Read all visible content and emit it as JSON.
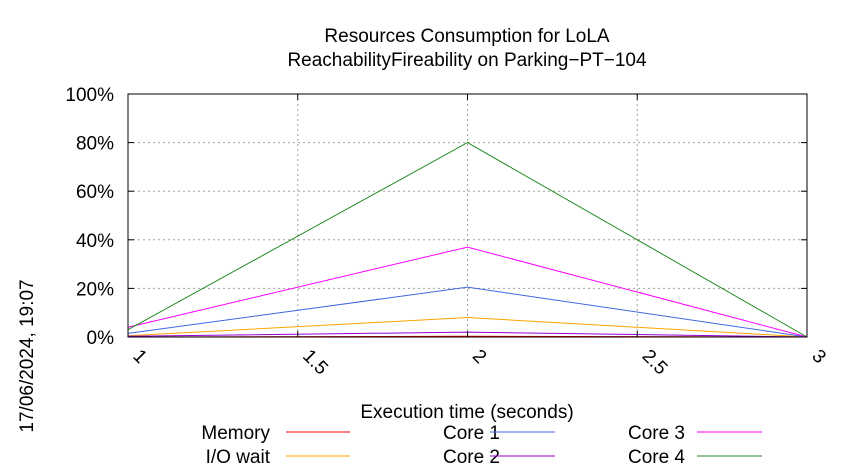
{
  "chart_data": {
    "type": "line",
    "title_line1": "Resources Consumption for LoLA",
    "title_line2": "ReachabilityFireability on Parking−PT−104",
    "xlabel": "Execution time (seconds)",
    "timestamp": "17/06/2024, 19:07",
    "xlim": [
      1,
      3
    ],
    "ylim": [
      0,
      100
    ],
    "x_ticks": [
      1,
      1.5,
      2,
      2.5,
      3
    ],
    "x_tick_labels": [
      "1",
      "1.5",
      "2",
      "2.5",
      "3"
    ],
    "y_ticks": [
      0,
      20,
      40,
      60,
      80,
      100
    ],
    "y_tick_labels": [
      "0%",
      "20%",
      "40%",
      "60%",
      "80%",
      "100%"
    ],
    "grid": true,
    "legend_position": "bottom",
    "x": [
      1,
      2,
      3
    ],
    "series": [
      {
        "name": "Memory",
        "color": "#ff0000",
        "values": [
          0,
          0.3,
          0
        ]
      },
      {
        "name": "I/O wait",
        "color": "#ffa500",
        "values": [
          0.5,
          8,
          0
        ]
      },
      {
        "name": "Core 1",
        "color": "#4169e1",
        "values": [
          1.5,
          20.5,
          0
        ]
      },
      {
        "name": "Core 2",
        "color": "#9400d3",
        "values": [
          0.3,
          2,
          0
        ]
      },
      {
        "name": "Core 3",
        "color": "#ff00ff",
        "values": [
          4,
          37,
          0
        ]
      },
      {
        "name": "Core 4",
        "color": "#228b22",
        "values": [
          3,
          80,
          0
        ]
      }
    ]
  }
}
